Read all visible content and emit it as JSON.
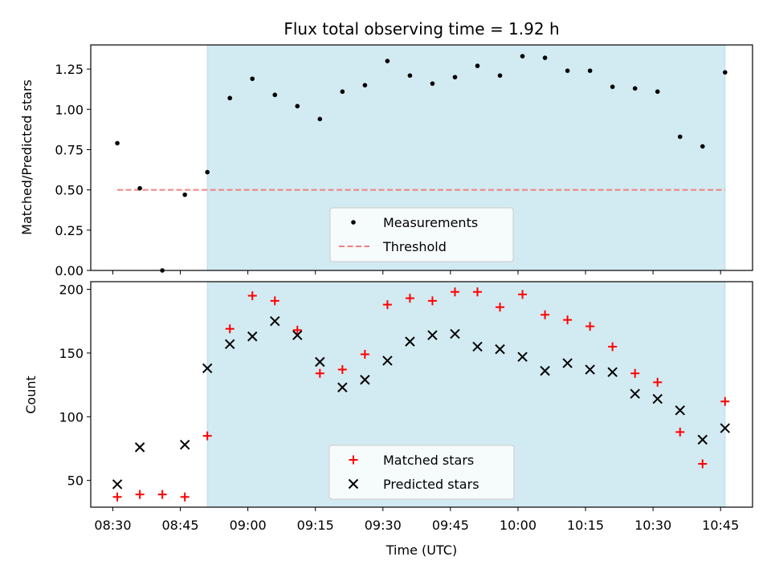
{
  "chart_data": {
    "title": "Flux total observing time = 1.92 h",
    "colors": {
      "shade": "#add8e6",
      "threshold": "#f08080",
      "measurement": "#000000",
      "matched": "#ff0000",
      "predicted": "#000000"
    },
    "xlabel": "Time (UTC)",
    "x_ticks": [
      "08:30",
      "08:45",
      "09:00",
      "09:15",
      "09:30",
      "09:45",
      "10:00",
      "10:15",
      "10:30",
      "10:45"
    ],
    "x_tick_minutes": [
      510,
      525,
      540,
      555,
      570,
      585,
      600,
      615,
      630,
      645
    ],
    "x_times": [
      "08:31",
      "08:36",
      "08:41",
      "08:46",
      "08:51",
      "08:56",
      "09:01",
      "09:06",
      "09:11",
      "09:16",
      "09:21",
      "09:26",
      "09:31",
      "09:36",
      "09:41",
      "09:46",
      "09:51",
      "09:56",
      "10:01",
      "10:06",
      "10:11",
      "10:16",
      "10:21",
      "10:26",
      "10:31",
      "10:36",
      "10:41",
      "10:46"
    ],
    "shaded_region": [
      "08:51",
      "10:46"
    ],
    "top": {
      "type": "scatter",
      "ylabel": "Matched/Predicted stars",
      "ylim": [
        0,
        1.4
      ],
      "y_ticks": [
        "0.00",
        "0.25",
        "0.50",
        "0.75",
        "1.00",
        "1.25"
      ],
      "y_tick_values": [
        0,
        0.25,
        0.5,
        0.75,
        1.0,
        1.25
      ],
      "threshold": {
        "value": 0.5,
        "x_range": [
          "08:31",
          "10:46"
        ]
      },
      "legend": {
        "position": "lower-center",
        "entries": [
          "Measurements",
          "Threshold"
        ]
      },
      "series": [
        {
          "name": "Measurements",
          "y": [
            0.79,
            0.51,
            0.0,
            0.47,
            0.61,
            1.07,
            1.19,
            1.09,
            1.02,
            0.94,
            1.11,
            1.15,
            1.3,
            1.21,
            1.16,
            1.2,
            1.27,
            1.21,
            1.33,
            1.32,
            1.24,
            1.24,
            1.14,
            1.13,
            1.11,
            0.83,
            0.77,
            1.23
          ]
        }
      ]
    },
    "bottom": {
      "type": "scatter",
      "ylabel": "Count",
      "ylim": [
        29,
        206
      ],
      "y_ticks": [
        "50",
        "100",
        "150",
        "200"
      ],
      "y_tick_values": [
        50,
        100,
        150,
        200
      ],
      "legend": {
        "position": "lower-center",
        "entries": [
          "Matched stars",
          "Predicted stars"
        ]
      },
      "series": [
        {
          "name": "Matched stars",
          "marker": "plus",
          "y": [
            37,
            39,
            39,
            37,
            85,
            169,
            195,
            191,
            168,
            134,
            137,
            149,
            188,
            193,
            191,
            198,
            198,
            186,
            196,
            180,
            176,
            171,
            155,
            134,
            127,
            88,
            63,
            112
          ]
        },
        {
          "name": "Predicted stars",
          "marker": "x",
          "y": [
            47,
            76,
            null,
            78,
            138,
            157,
            163,
            175,
            164,
            143,
            123,
            129,
            144,
            159,
            164,
            165,
            155,
            153,
            147,
            136,
            142,
            137,
            135,
            118,
            114,
            105,
            82,
            91
          ]
        }
      ]
    }
  }
}
